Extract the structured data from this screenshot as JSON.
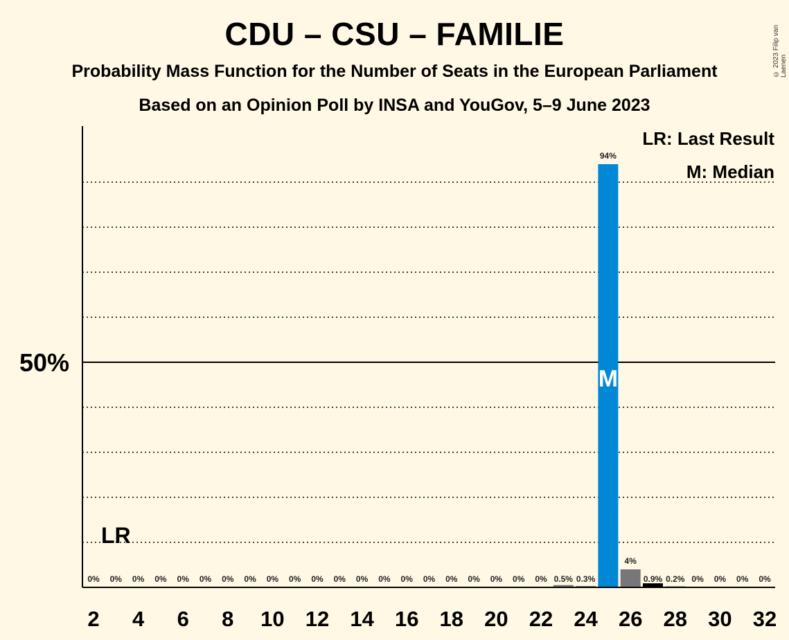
{
  "title": "CDU – CSU – FAMILIE",
  "subtitle": "Probability Mass Function for the Number of Seats in the European Parliament",
  "subtitle2": "Based on an Opinion Poll by INSA and YouGov, 5–9 June 2023",
  "copyright": "© 2023 Filip van Laenen",
  "legend": {
    "last_result": "LR: Last Result",
    "median": "M: Median"
  },
  "colors": {
    "background": "#fff8e5",
    "median_bar": "#0088d6",
    "other_bar": "#777777",
    "dark_bar": "#000000"
  },
  "chart_data": {
    "type": "bar",
    "xlabel": "",
    "ylabel": "",
    "ylim": [
      0,
      100
    ],
    "y_tick_labels": [
      {
        "value": 50,
        "label": "50%"
      }
    ],
    "grid": "dotted every 10%",
    "x_tick_labels": [
      "2",
      "4",
      "6",
      "8",
      "10",
      "12",
      "14",
      "16",
      "18",
      "20",
      "22",
      "24",
      "26",
      "28",
      "30",
      "32"
    ],
    "categories": [
      2,
      3,
      4,
      5,
      6,
      7,
      8,
      9,
      10,
      11,
      12,
      13,
      14,
      15,
      16,
      17,
      18,
      19,
      20,
      21,
      22,
      23,
      24,
      25,
      26,
      27,
      28,
      29,
      30,
      31,
      32
    ],
    "values": [
      0,
      0,
      0,
      0,
      0,
      0,
      0,
      0,
      0,
      0,
      0,
      0,
      0,
      0,
      0,
      0,
      0,
      0,
      0,
      0,
      0,
      0.5,
      0.3,
      94,
      4,
      0.9,
      0.2,
      0,
      0,
      0,
      0
    ],
    "labels": [
      "0%",
      "0%",
      "0%",
      "0%",
      "0%",
      "0%",
      "0%",
      "0%",
      "0%",
      "0%",
      "0%",
      "0%",
      "0%",
      "0%",
      "0%",
      "0%",
      "0%",
      "0%",
      "0%",
      "0%",
      "0%",
      "0.5%",
      "0.3%",
      "94%",
      "4%",
      "0.9%",
      "0.2%",
      "0%",
      "0%",
      "0%",
      "0%"
    ],
    "last_result": {
      "seat": 3,
      "label": "LR"
    },
    "median": {
      "seat": 25,
      "label": "M"
    }
  }
}
